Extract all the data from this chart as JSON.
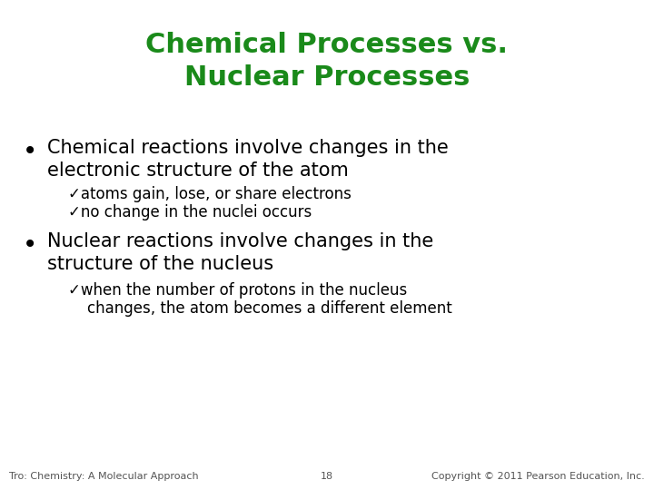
{
  "title_line1": "Chemical Processes vs.",
  "title_line2": "Nuclear Processes",
  "title_color": "#1a8a1a",
  "background_color": "#ffffff",
  "bullet1_line1": "Chemical reactions involve changes in the",
  "bullet1_line2": "electronic structure of the atom",
  "check1a": "✓atoms gain, lose, or share electrons",
  "check1b": "✓no change in the nuclei occurs",
  "bullet2_line1": "Nuclear reactions involve changes in the",
  "bullet2_line2": "structure of the nucleus",
  "check2a": "✓when the number of protons in the nucleus",
  "check2b": "    changes, the atom becomes a different element",
  "footer_left": "Tro: Chemistry: A Molecular Approach",
  "footer_center": "18",
  "footer_right": "Copyright © 2011 Pearson Education, Inc.",
  "text_color": "#000000",
  "footer_color": "#555555",
  "title_fontsize": 22,
  "bullet_fontsize": 15,
  "bullet_dot_fontsize": 20,
  "check_fontsize": 12,
  "footer_fontsize": 8
}
